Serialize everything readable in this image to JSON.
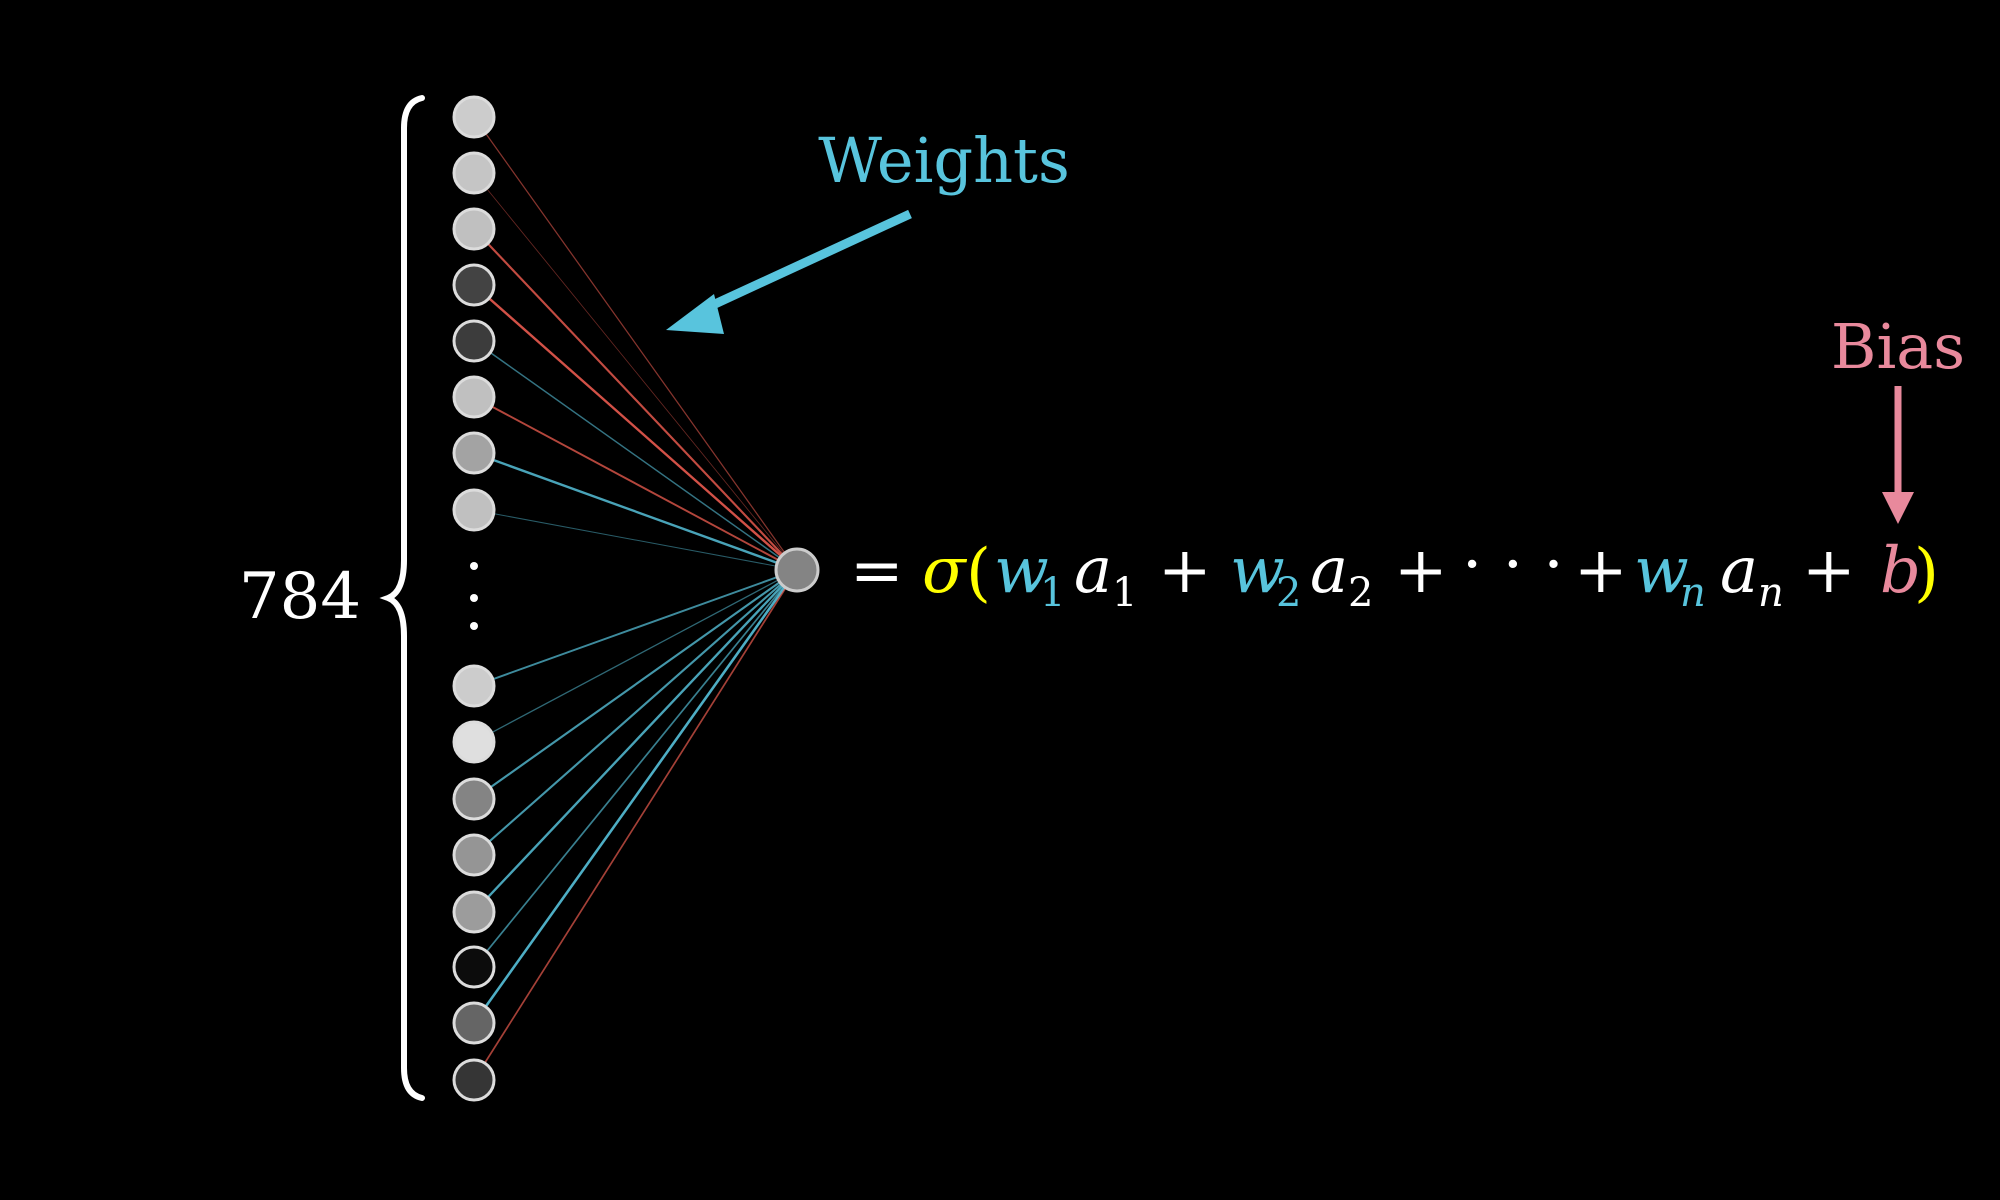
{
  "labels": {
    "weights": "Weights",
    "bias": "Bias",
    "count": "784",
    "ellipsis_vertical": "⋮"
  },
  "colors": {
    "background": "#000000",
    "weights_blue": "#58C4DD",
    "bias_pink": "#E8899C",
    "sigma_yellow": "#FFFF00",
    "positive_weight": "#58C4DD",
    "negative_weight": "#FC6255",
    "text": "#FFFFFF"
  },
  "formula": {
    "equals": "=",
    "sigma": "σ",
    "open_paren": "(",
    "close_paren": ")",
    "w": "w",
    "a": "a",
    "sub1": "1",
    "sub2": "2",
    "subn": "n",
    "plus": "+",
    "dots": "· · ·",
    "b": "b"
  },
  "network": {
    "input_activations": [
      0.85,
      0.82,
      0.8,
      0.28,
      0.25,
      0.8,
      0.68,
      0.8,
      0.85,
      0.93,
      0.55,
      0.62,
      0.65,
      0.05,
      0.42,
      0.22
    ],
    "input_weights": [
      -0.3,
      -0.1,
      -0.7,
      -0.8,
      0.4,
      -0.6,
      0.8,
      0.2,
      0.6,
      0.3,
      0.7,
      0.7,
      0.8,
      0.5,
      0.9,
      -0.5
    ],
    "output_activation": 0.55
  }
}
